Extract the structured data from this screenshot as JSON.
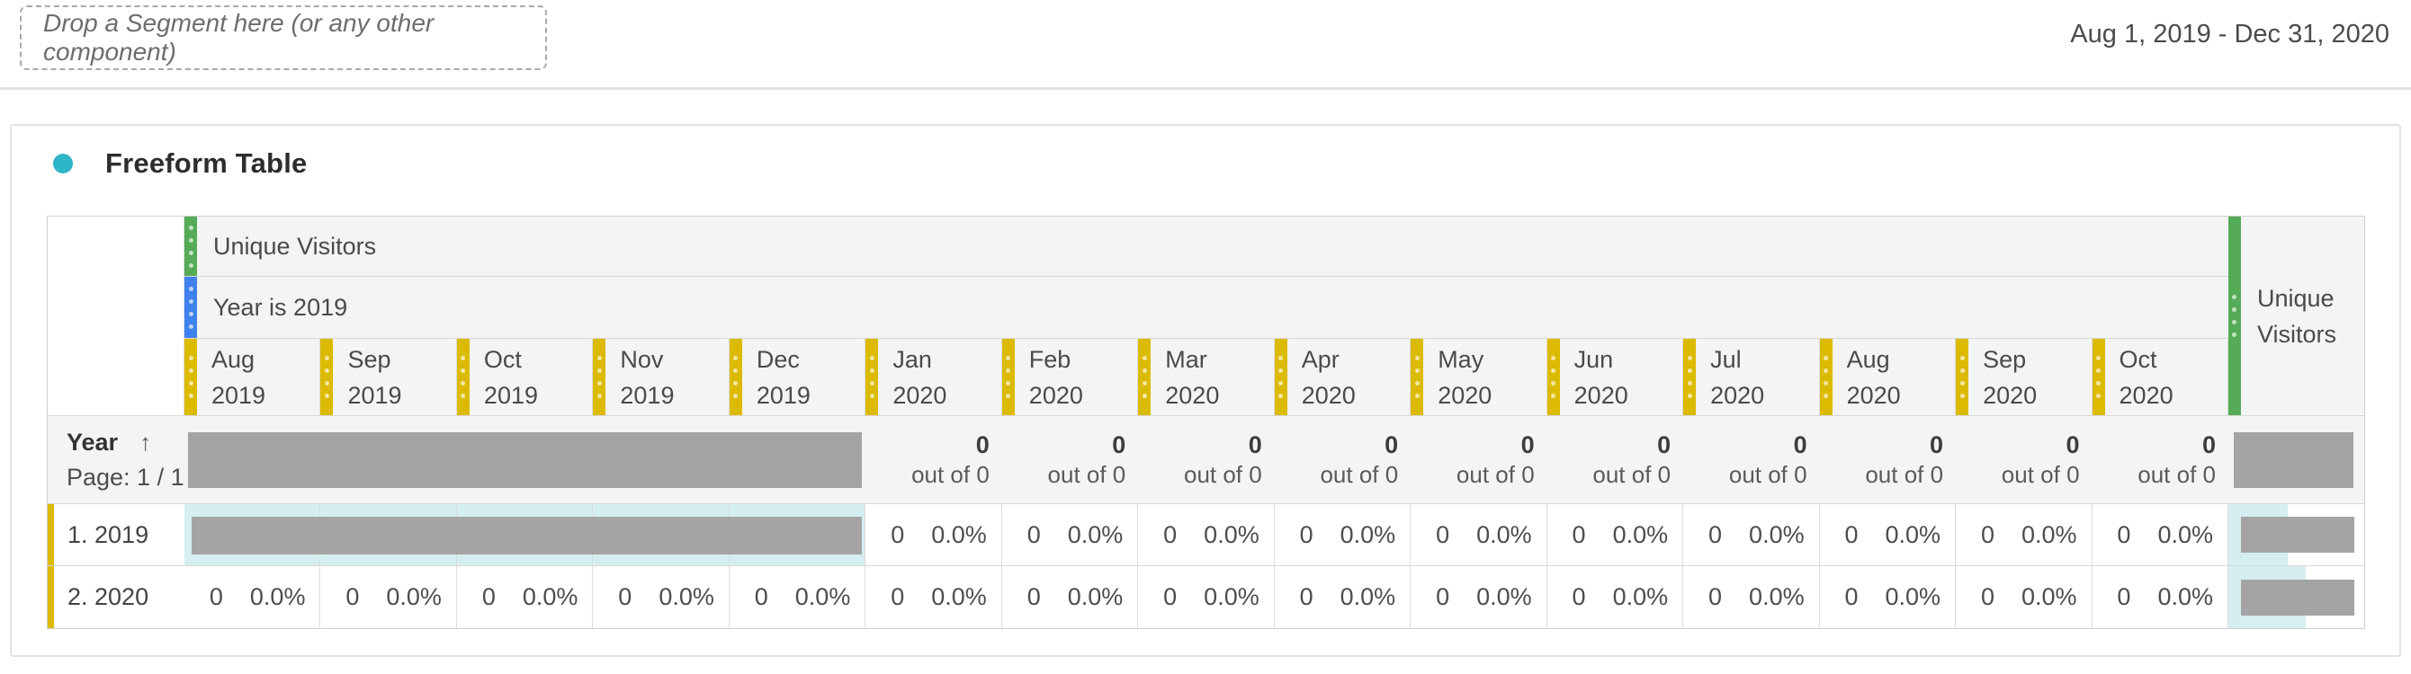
{
  "colors": {
    "accent-teal": "#2fb5c8",
    "metric-green": "#56ab58",
    "segment-blue": "#3f82ee",
    "dimension-yellow": "#dcba00",
    "masked-gray": "#a4a4a4",
    "cell-cyan": "#d5eef1",
    "header-bg": "#f4f4f4"
  },
  "topbar": {
    "dropzone_label": "Drop a Segment here (or any other component)",
    "date_range": "Aug 1, 2019 - Dec 31, 2020"
  },
  "panel": {
    "title": "Freeform Table"
  },
  "table": {
    "metric_header": "Unique Visitors",
    "segment_header": "Year is 2019",
    "total_header": "Unique Visitors",
    "columns": [
      {
        "month": "Aug",
        "year": "2019"
      },
      {
        "month": "Sep",
        "year": "2019"
      },
      {
        "month": "Oct",
        "year": "2019"
      },
      {
        "month": "Nov",
        "year": "2019"
      },
      {
        "month": "Dec",
        "year": "2019"
      },
      {
        "month": "Jan",
        "year": "2020"
      },
      {
        "month": "Feb",
        "year": "2020"
      },
      {
        "month": "Mar",
        "year": "2020"
      },
      {
        "month": "Apr",
        "year": "2020"
      },
      {
        "month": "May",
        "year": "2020"
      },
      {
        "month": "Jun",
        "year": "2020"
      },
      {
        "month": "Jul",
        "year": "2020"
      },
      {
        "month": "Aug",
        "year": "2020"
      },
      {
        "month": "Sep",
        "year": "2020"
      },
      {
        "month": "Oct",
        "year": "2020"
      }
    ],
    "dimension": {
      "label": "Year",
      "sort_icon": "↑",
      "page_label": "Page: 1 / 1 R"
    },
    "summary": {
      "cells": [
        {
          "value": "0",
          "sub": "out of 0"
        },
        {
          "value": "0",
          "sub": "out of 0"
        },
        {
          "value": "0",
          "sub": "out of 0"
        },
        {
          "value": "0",
          "sub": "out of 0"
        },
        {
          "value": "0",
          "sub": "out of 0"
        },
        {
          "value": "0",
          "sub": "out of 0"
        },
        {
          "value": "0",
          "sub": "out of 0"
        },
        {
          "value": "0",
          "sub": "out of 0"
        },
        {
          "value": "0",
          "sub": "out of 0"
        },
        {
          "value": "0",
          "sub": "out of 0"
        }
      ]
    },
    "rows": [
      {
        "label": "1. 2019",
        "masked_column_count": 5,
        "total_bar_pct": 44,
        "cells": [
          {
            "value": "0",
            "pct": "0.0%"
          },
          {
            "value": "0",
            "pct": "0.0%"
          },
          {
            "value": "0",
            "pct": "0.0%"
          },
          {
            "value": "0",
            "pct": "0.0%"
          },
          {
            "value": "0",
            "pct": "0.0%"
          },
          {
            "value": "0",
            "pct": "0.0%"
          },
          {
            "value": "0",
            "pct": "0.0%"
          },
          {
            "value": "0",
            "pct": "0.0%"
          },
          {
            "value": "0",
            "pct": "0.0%"
          },
          {
            "value": "0",
            "pct": "0.0%"
          }
        ]
      },
      {
        "label": "2. 2020",
        "total_bar_pct": 57,
        "cells": [
          {
            "value": "0",
            "pct": "0.0%"
          },
          {
            "value": "0",
            "pct": "0.0%"
          },
          {
            "value": "0",
            "pct": "0.0%"
          },
          {
            "value": "0",
            "pct": "0.0%"
          },
          {
            "value": "0",
            "pct": "0.0%"
          },
          {
            "value": "0",
            "pct": "0.0%"
          },
          {
            "value": "0",
            "pct": "0.0%"
          },
          {
            "value": "0",
            "pct": "0.0%"
          },
          {
            "value": "0",
            "pct": "0.0%"
          },
          {
            "value": "0",
            "pct": "0.0%"
          },
          {
            "value": "0",
            "pct": "0.0%"
          },
          {
            "value": "0",
            "pct": "0.0%"
          },
          {
            "value": "0",
            "pct": "0.0%"
          },
          {
            "value": "0",
            "pct": "0.0%"
          },
          {
            "value": "0",
            "pct": "0.0%"
          }
        ]
      }
    ]
  }
}
